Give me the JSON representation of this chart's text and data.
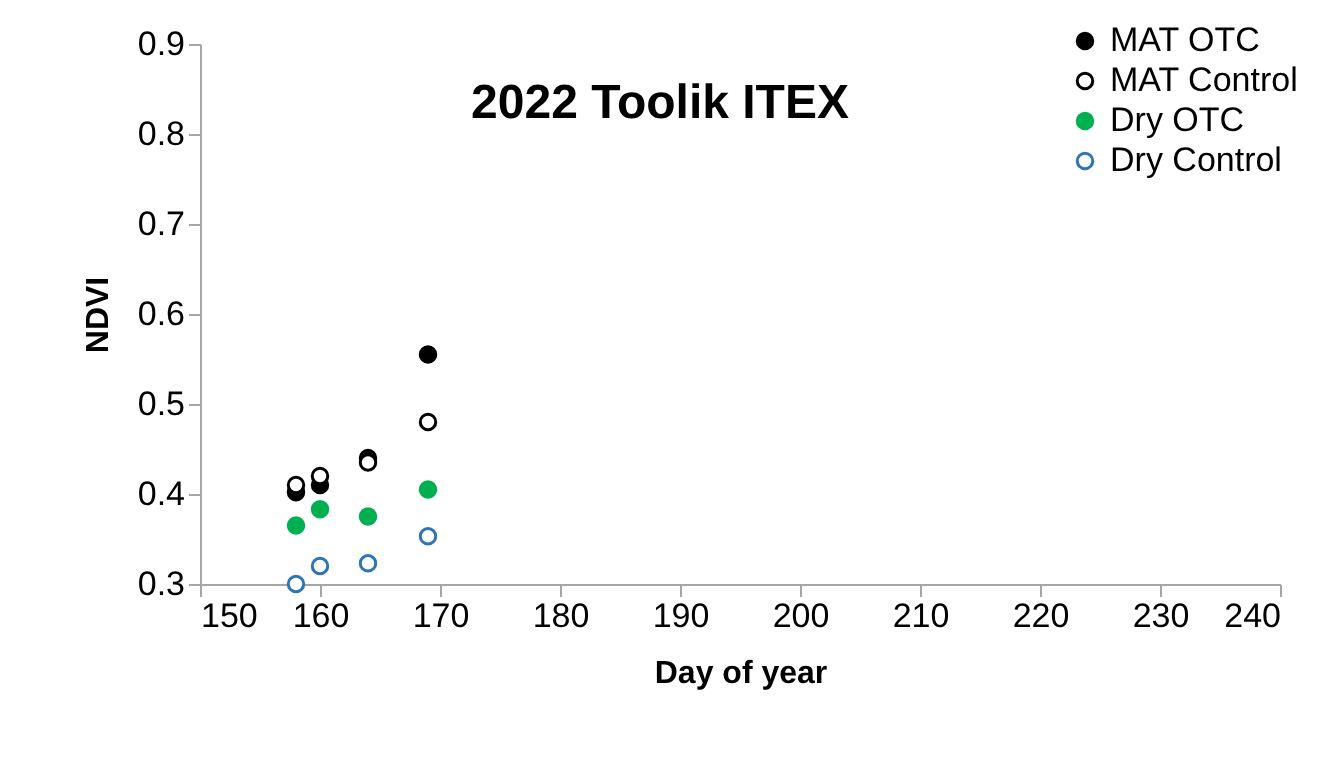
{
  "chart_data": {
    "type": "scatter",
    "title": "2022 Toolik ITEX",
    "xlabel": "Day of year",
    "ylabel": "NDVI",
    "x": [
      158,
      160,
      164,
      169
    ],
    "series": [
      {
        "name": "MAT OTC",
        "color": "#000000",
        "marker": "circle",
        "values": [
          0.402,
          0.41,
          0.44,
          0.555
        ]
      },
      {
        "name": "MAT Control",
        "color": "#000000",
        "marker": "open circle",
        "values": [
          0.41,
          0.42,
          0.435,
          0.48
        ]
      },
      {
        "name": "Dry OTC",
        "color": "#00b050",
        "marker": "circle",
        "values": [
          0.365,
          0.383,
          0.375,
          0.405
        ]
      },
      {
        "name": "Dry Control",
        "color": "#2e75b6",
        "marker": "open circle",
        "values": [
          0.3,
          0.32,
          0.323,
          0.353
        ]
      }
    ],
    "xlim": [
      150,
      240
    ],
    "xticks": [
      150,
      160,
      170,
      180,
      190,
      200,
      210,
      220,
      230,
      240
    ],
    "ylim": [
      0.3,
      0.9
    ],
    "yticks": [
      0.3,
      0.4,
      0.5,
      0.6,
      0.7,
      0.8,
      0.9
    ],
    "grid": false,
    "legend": "top right",
    "marker": "circle"
  }
}
